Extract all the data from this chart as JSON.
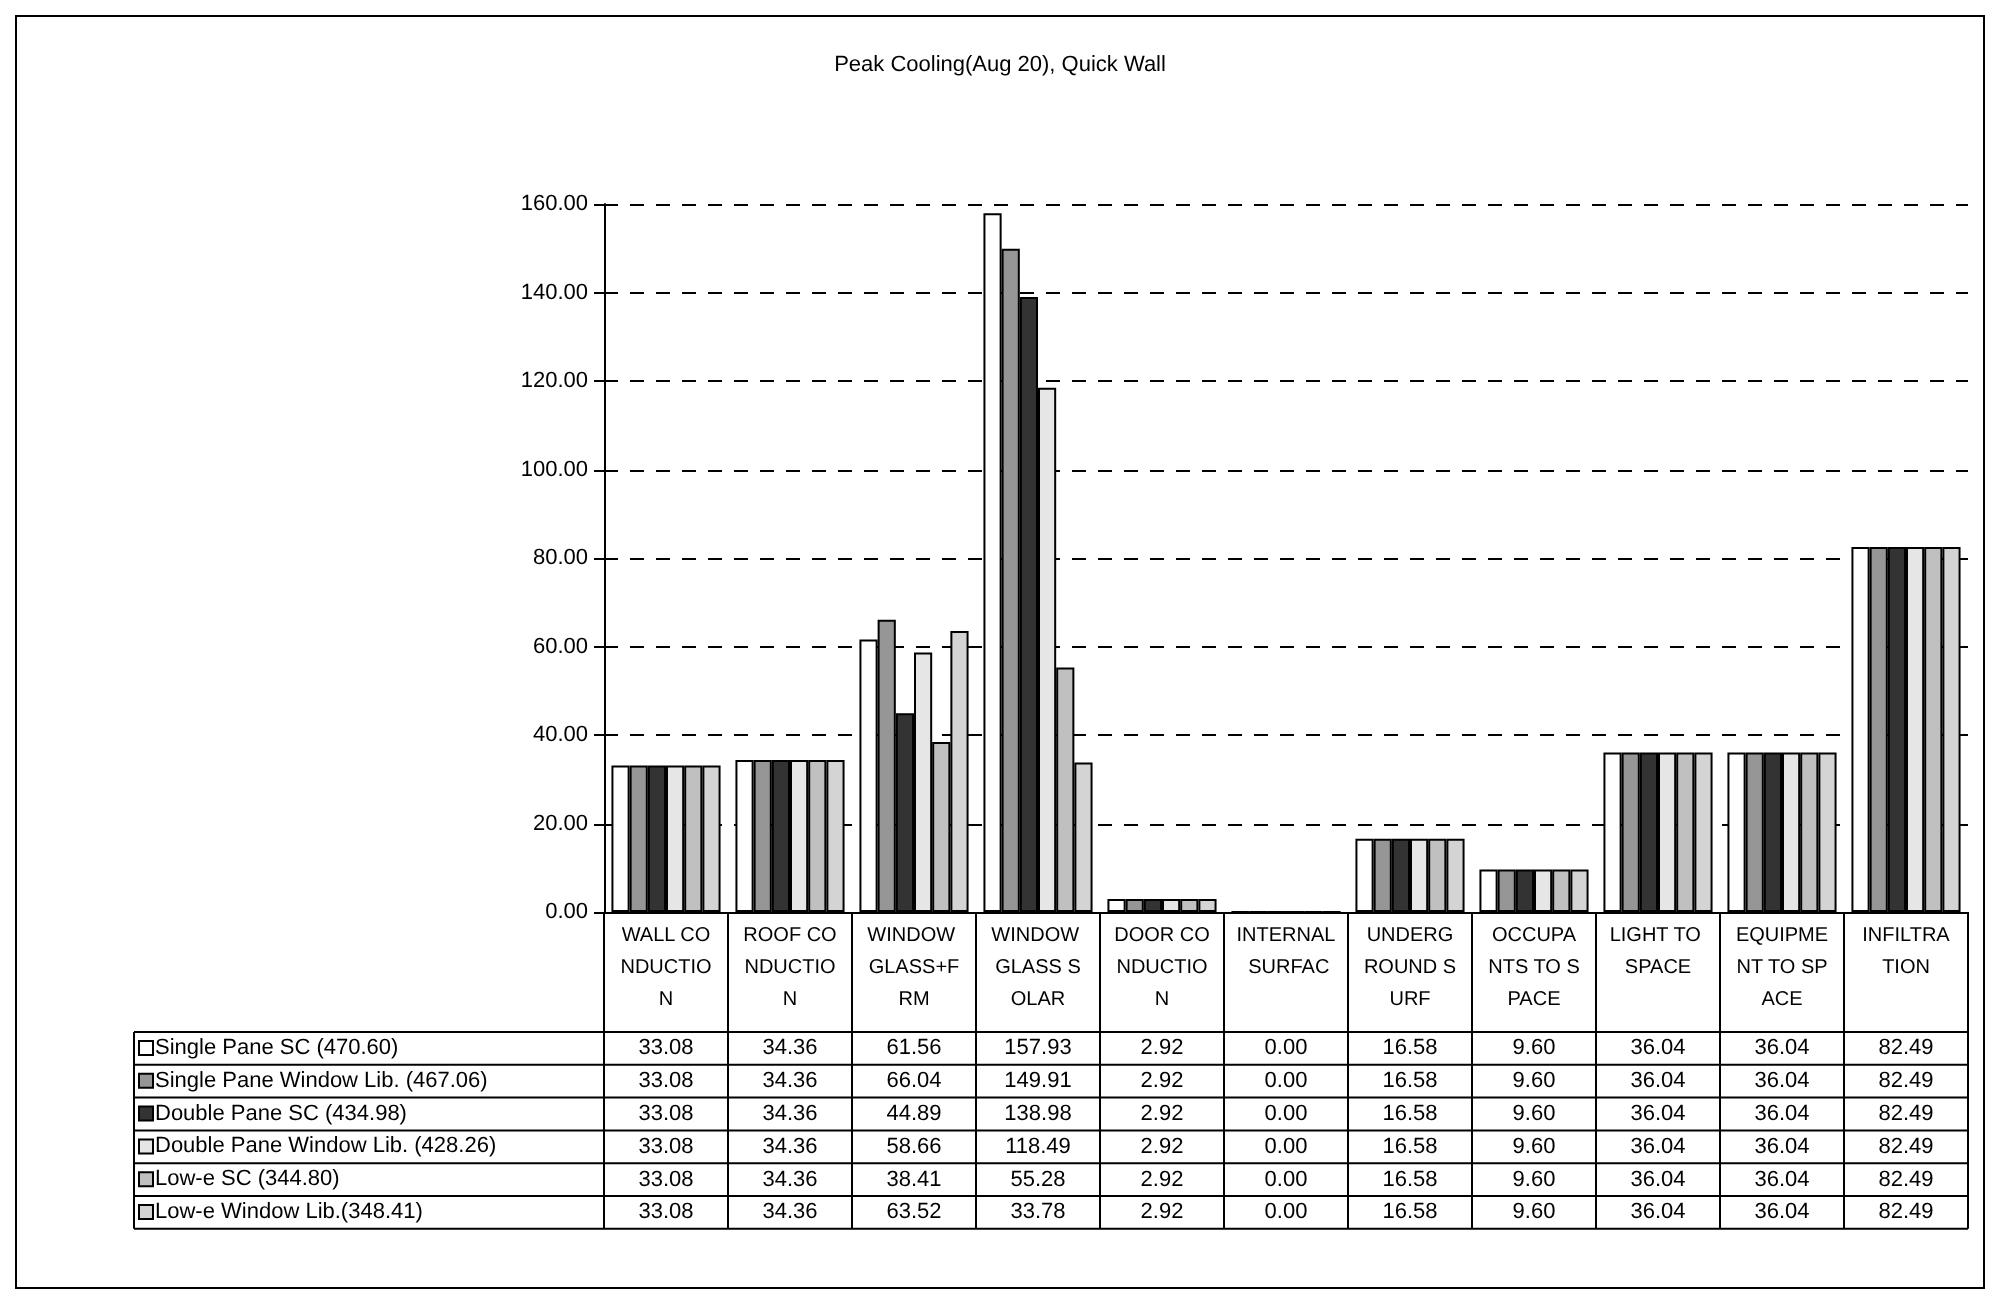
{
  "chart_data": {
    "type": "bar",
    "title": "Peak Cooling(Aug 20), Quick Wall",
    "categories": [
      "WALL CONDUCTION",
      "ROOF CONDUCTION",
      "WINDOW GLASS+FRM",
      "WINDOW GLASS SOLAR",
      "DOOR CONDUCTION",
      "INTERNAL SURFAC",
      "UNDERGROUND SURF",
      "OCCUPANTS TO SPACE",
      "LIGHT TO SPACE",
      "EQUIPMENT TO SPACE",
      "INFILTRATION"
    ],
    "series": [
      {
        "name": "Single Pane SC (470.60)",
        "color": "#ffffff",
        "values": [
          33.08,
          34.36,
          61.56,
          157.93,
          2.92,
          0,
          16.58,
          9.6,
          36.04,
          36.04,
          82.49
        ],
        "value_labels": [
          "33.08",
          "34.36",
          "61.56",
          "157.93",
          "2.92",
          "0.00",
          "16.58",
          "9.60",
          "36.04",
          "36.04",
          "82.49"
        ]
      },
      {
        "name": "Single Pane Window Lib. (467.06)",
        "color": "#969696",
        "values": [
          33.08,
          34.36,
          66.04,
          149.91,
          2.92,
          0,
          16.58,
          9.6,
          36.04,
          36.04,
          82.49
        ],
        "value_labels": [
          "33.08",
          "34.36",
          "66.04",
          "149.91",
          "2.92",
          "0.00",
          "16.58",
          "9.60",
          "36.04",
          "36.04",
          "82.49"
        ]
      },
      {
        "name": "Double Pane SC (434.98)",
        "color": "#333333",
        "values": [
          33.08,
          34.36,
          44.89,
          138.98,
          2.92,
          0,
          16.58,
          9.6,
          36.04,
          36.04,
          82.49
        ],
        "value_labels": [
          "33.08",
          "34.36",
          "44.89",
          "138.98",
          "2.92",
          "0.00",
          "16.58",
          "9.60",
          "36.04",
          "36.04",
          "82.49"
        ]
      },
      {
        "name": "Double Pane Window Lib. (428.26)",
        "color": "#e6e6e6",
        "values": [
          33.08,
          34.36,
          58.66,
          118.49,
          2.92,
          0,
          16.58,
          9.6,
          36.04,
          36.04,
          82.49
        ],
        "value_labels": [
          "33.08",
          "34.36",
          "58.66",
          "118.49",
          "2.92",
          "0.00",
          "16.58",
          "9.60",
          "36.04",
          "36.04",
          "82.49"
        ]
      },
      {
        "name": "Low-e SC (344.80)",
        "color": "#c0c0c0",
        "values": [
          33.08,
          34.36,
          38.41,
          55.28,
          2.92,
          0,
          16.58,
          9.6,
          36.04,
          36.04,
          82.49
        ],
        "value_labels": [
          "33.08",
          "34.36",
          "38.41",
          "55.28",
          "2.92",
          "0.00",
          "16.58",
          "9.60",
          "36.04",
          "36.04",
          "82.49"
        ]
      },
      {
        "name": "Low-e Window Lib.(348.41)",
        "color": "#d4d4d4",
        "values": [
          33.08,
          34.36,
          63.52,
          33.78,
          2.92,
          0,
          16.58,
          9.6,
          36.04,
          36.04,
          82.49
        ],
        "value_labels": [
          "33.08",
          "34.36",
          "63.52",
          "33.78",
          "2.92",
          "0.00",
          "16.58",
          "9.60",
          "36.04",
          "36.04",
          "82.49"
        ]
      }
    ],
    "ylim": [
      0,
      160
    ],
    "yticks": [
      {
        "value": 0,
        "label": "0.00"
      },
      {
        "value": 20,
        "label": "20.00"
      },
      {
        "value": 40,
        "label": "40.00"
      },
      {
        "value": 60,
        "label": "60.00"
      },
      {
        "value": 80,
        "label": "80.00"
      },
      {
        "value": 100,
        "label": "100.00"
      },
      {
        "value": 120,
        "label": "120.00"
      },
      {
        "value": 140,
        "label": "140.00"
      },
      {
        "value": 160,
        "label": "160.00"
      }
    ],
    "grid": "y",
    "legend": "bottom left"
  }
}
